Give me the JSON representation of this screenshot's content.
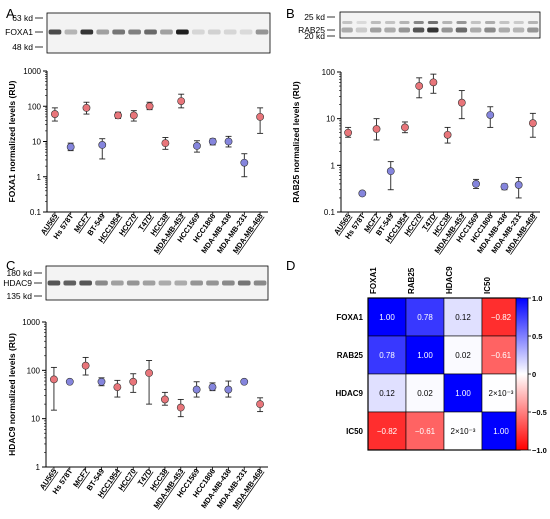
{
  "colors": {
    "red_point": "#e8757a",
    "blue_point": "#8585dd",
    "error_bar": "#222222",
    "heat_neg": "#ff0000",
    "heat_zero": "#ffffff",
    "heat_pos": "#0000ff"
  },
  "cell_lines": [
    "AU565",
    "Hs 578T",
    "MCF7",
    "BT-549",
    "HCC1954",
    "HCC70",
    "T47D",
    "HCC38",
    "MDA-MB-453",
    "HCC1569",
    "HCC1806",
    "MDA-MB-436",
    "MDA-MB-231",
    "MDA-MB-468"
  ],
  "underlined_lines": [
    "AU565",
    "MCF7",
    "HCC1954",
    "HCC70",
    "T47D",
    "HCC38",
    "MDA-MB-453",
    "MDA-MB-468"
  ],
  "panels": [
    {
      "letter": "A",
      "blot": {
        "protein_label": "FOXA1",
        "markers": [
          {
            "label": "63 kd",
            "row": "top"
          },
          {
            "label": "48 kd",
            "row": "bottom"
          }
        ],
        "band_intensity": [
          0.75,
          0.25,
          0.85,
          0.35,
          0.55,
          0.5,
          0.6,
          0.35,
          0.95,
          0.1,
          0.12,
          0.1,
          0.08,
          0.4
        ]
      }
    },
    {
      "letter": "B",
      "blot": {
        "protein_label": "RAB25",
        "markers": [
          {
            "label": "25 kd",
            "row": "top"
          },
          {
            "label": "20 kd",
            "row": "bottom"
          }
        ],
        "band_intensity": [
          0.3,
          0.15,
          0.35,
          0.3,
          0.4,
          0.7,
          0.85,
          0.4,
          0.6,
          0.3,
          0.45,
          0.3,
          0.25,
          0.4
        ]
      }
    },
    {
      "letter": "C",
      "blot": {
        "protein_label": "HDAC9",
        "markers": [
          {
            "label": "180 kd",
            "row": "top"
          },
          {
            "label": "135 kd",
            "row": "bottom"
          }
        ],
        "band_intensity": [
          0.7,
          0.65,
          0.7,
          0.45,
          0.35,
          0.4,
          0.35,
          0.3,
          0.3,
          0.4,
          0.4,
          0.45,
          0.55,
          0.45
        ]
      }
    },
    {
      "letter": "D"
    }
  ],
  "chart_data": [
    {
      "type": "scatter",
      "panel": "A",
      "ylabel": "FOXA1 normalized levels (RU)",
      "yscale": "log",
      "ylim": [
        0.1,
        1000
      ],
      "yticks": [
        "0.1",
        "1",
        "10",
        "100",
        "1000"
      ],
      "categories": [
        "AU565",
        "Hs 578T",
        "MCF7",
        "BT-549",
        "HCC1954",
        "HCC70",
        "T47D",
        "HCC38",
        "MDA-MB-453",
        "HCC1569",
        "HCC1806",
        "MDA-MB-436",
        "MDA-MB-231",
        "MDA-MB-468"
      ],
      "values": [
        60,
        7,
        90,
        8,
        55,
        55,
        100,
        9,
        140,
        7.5,
        10,
        10,
        2.5,
        50
      ],
      "err_low": [
        38,
        5.5,
        60,
        3.2,
        45,
        38,
        80,
        6,
        90,
        5,
        8,
        7,
        1,
        17
      ],
      "err_high": [
        90,
        9,
        130,
        12,
        68,
        75,
        130,
        13,
        220,
        10.5,
        12,
        14,
        4.5,
        90
      ],
      "point_color": [
        "red",
        "blue",
        "red",
        "blue",
        "red",
        "red",
        "red",
        "red",
        "red",
        "blue",
        "blue",
        "blue",
        "blue",
        "red"
      ]
    },
    {
      "type": "scatter",
      "panel": "B",
      "ylabel": "RAB25 normalized levels (RU)",
      "yscale": "log",
      "ylim": [
        0.1,
        100
      ],
      "yticks": [
        "0.1",
        "1",
        "10",
        "100"
      ],
      "categories": [
        "AU565",
        "Hs 578T",
        "MCF7",
        "BT-549",
        "HCC1954",
        "HCC70",
        "T47D",
        "HCC38",
        "MDA-MB-453",
        "HCC1569",
        "HCC1806",
        "MDA-MB-436",
        "MDA-MB-231",
        "MDA-MB-468"
      ],
      "values": [
        5,
        0.25,
        6,
        0.75,
        6.5,
        50,
        60,
        4.5,
        22,
        0.4,
        12,
        0.35,
        0.38,
        8
      ],
      "err_low": [
        4,
        0.24,
        3.5,
        0.3,
        5,
        28,
        35,
        3,
        10,
        0.32,
        6.5,
        0.3,
        0.2,
        4
      ],
      "err_high": [
        6.5,
        0.26,
        10,
        1.2,
        8.5,
        75,
        90,
        6.5,
        40,
        0.5,
        18,
        0.4,
        0.55,
        13
      ],
      "point_color": [
        "red",
        "blue",
        "red",
        "blue",
        "red",
        "red",
        "red",
        "red",
        "red",
        "blue",
        "blue",
        "blue",
        "blue",
        "red"
      ]
    },
    {
      "type": "scatter",
      "panel": "C",
      "ylabel": "HDAC9 normalized levels (RU)",
      "yscale": "log",
      "ylim": [
        1,
        1000
      ],
      "yticks": [
        "1",
        "10",
        "100",
        "1000"
      ],
      "categories": [
        "AU565",
        "Hs 578T",
        "MCF7",
        "BT-549",
        "HCC1954",
        "HCC70",
        "T47D",
        "HCC38",
        "MDA-MB-453",
        "HCC1569",
        "HCC1806",
        "MDA-MB-436",
        "MDA-MB-231",
        "MDA-MB-468"
      ],
      "values": [
        65,
        58,
        125,
        58,
        45,
        58,
        88,
        25,
        17,
        40,
        45,
        40,
        58,
        20
      ],
      "err_low": [
        15,
        56,
        80,
        48,
        28,
        35,
        20,
        19,
        11,
        28,
        38,
        28,
        56,
        14
      ],
      "err_high": [
        115,
        60,
        185,
        70,
        62,
        85,
        160,
        35,
        25,
        58,
        55,
        60,
        60,
        27
      ],
      "point_color": [
        "red",
        "blue",
        "red",
        "blue",
        "red",
        "red",
        "red",
        "red",
        "red",
        "blue",
        "blue",
        "blue",
        "blue",
        "red"
      ]
    },
    {
      "type": "heatmap",
      "panel": "D",
      "rows": [
        "FOXA1",
        "RAB25",
        "HDAC9",
        "IC50"
      ],
      "columns": [
        "FOXA1",
        "RAB25",
        "HDAC9",
        "IC50"
      ],
      "values": [
        [
          1.0,
          0.78,
          0.12,
          -0.82
        ],
        [
          0.78,
          1.0,
          0.02,
          -0.61
        ],
        [
          0.12,
          0.02,
          1.0,
          0.002
        ],
        [
          -0.82,
          -0.61,
          0.002,
          1.0
        ]
      ],
      "labels": [
        [
          "1.00",
          "0.78",
          "0.12",
          "−0.82"
        ],
        [
          "0.78",
          "1.00",
          "0.02",
          "−0.61"
        ],
        [
          "0.12",
          "0.02",
          "1.00",
          "2×10⁻³"
        ],
        [
          "−0.82",
          "−0.61",
          "2×10⁻³",
          "1.00"
        ]
      ],
      "colorbar": {
        "range": [
          -1.0,
          1.0
        ],
        "ticks": [
          "−1.0",
          "−0.5",
          "0",
          "0.5",
          "1.0"
        ],
        "tick_values": [
          -1.0,
          -0.5,
          0,
          0.5,
          1.0
        ]
      }
    }
  ]
}
